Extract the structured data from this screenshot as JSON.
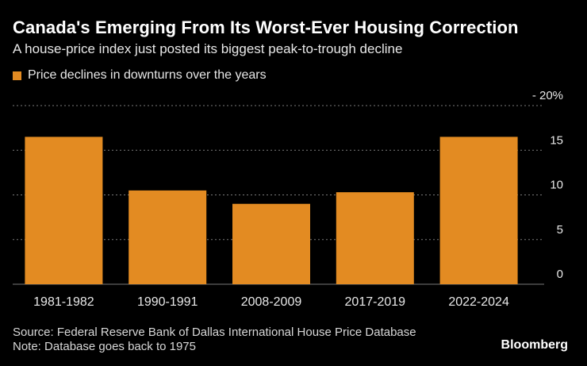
{
  "header": {
    "title": "Canada's Emerging From Its Worst-Ever Housing Correction",
    "subtitle": "A house-price index just posted its biggest peak-to-trough decline"
  },
  "footer": {
    "source": "Source: Federal Reserve Bank of Dallas International House Price Database",
    "note": "Note: Database goes back to 1975",
    "brand": "Bloomberg"
  },
  "colors": {
    "bar": "#e38b22",
    "grid": "#7a7a7a",
    "background": "#000000"
  },
  "chart_data": {
    "type": "bar",
    "categories": [
      "1981-1982",
      "1990-1991",
      "2008-2009",
      "2017-2019",
      "2022-2024"
    ],
    "series": [
      {
        "name": "Price declines in downturns over the years",
        "values": [
          16.5,
          10.5,
          9.0,
          10.3,
          16.5
        ]
      }
    ],
    "ylim": [
      0,
      20
    ],
    "yticks": [
      0,
      5,
      10,
      15,
      20
    ],
    "ytick_labels": [
      "0",
      "5",
      "10",
      "15",
      "- 20%"
    ],
    "title": "Canada's Emerging From Its Worst-Ever Housing Correction",
    "xlabel": "",
    "ylabel": "",
    "legend_position": "top-left",
    "grid": true
  }
}
